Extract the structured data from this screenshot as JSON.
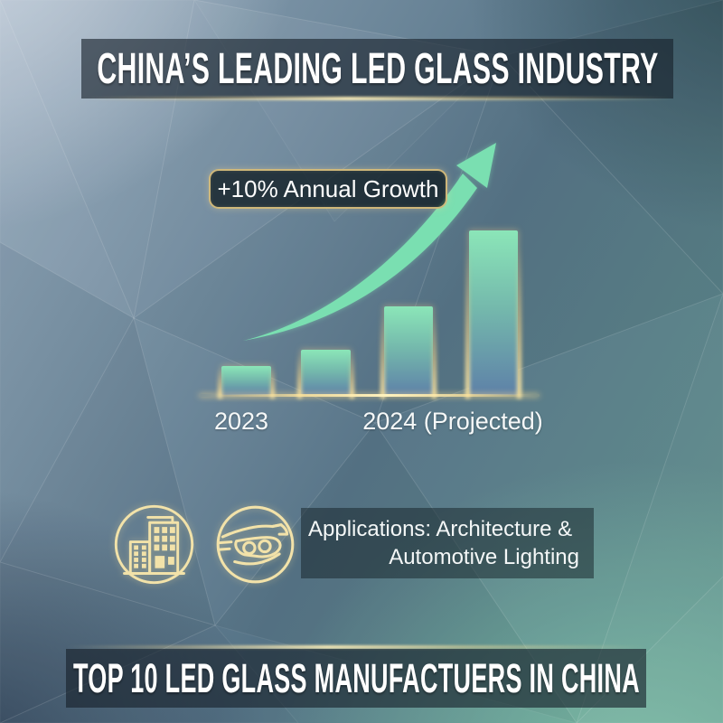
{
  "header": {
    "title": "CHINA’S LEADING LED GLASS INDUSTRY"
  },
  "footer": {
    "title": "TOP 10 LED GLASS MANUFACTUERS IN CHINA"
  },
  "chart_data": {
    "type": "bar",
    "annotation": "+10% Annual Growth",
    "x_axis_labels": [
      "2023",
      "2024 (Projected)"
    ],
    "categories": [
      "2023",
      "",
      "",
      "2024 (Projected)"
    ],
    "bar_relative_heights": [
      1.0,
      1.55,
      3.05,
      5.7
    ],
    "y_axis_shown": false,
    "gridlines": false,
    "trend_arrow": "exponential-up"
  },
  "applications": {
    "line1": "Applications: Architecture &",
    "line2": "Automotive Lighting",
    "icons": [
      {
        "name": "buildings-icon"
      },
      {
        "name": "car-headlights-icon"
      }
    ]
  },
  "colors": {
    "arrow_green": "#7ADFB1",
    "bar_top": "#8BE6B8",
    "bar_bottom": "#5E81A8",
    "gold_glow": "#FFE49B",
    "icon_stroke": "#F2E2A9",
    "banner_overlay": "rgba(23,33,42,0.62)",
    "text": "#FFFFFF"
  }
}
